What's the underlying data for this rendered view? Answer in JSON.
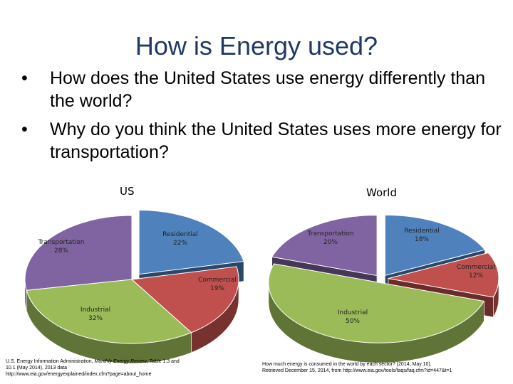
{
  "slide": {
    "title": "How is Energy used?",
    "bullets": [
      "How does the United States use energy differently than the world?",
      "Why do you think the United States uses more energy for transportation?"
    ],
    "bullet_glyph": "•"
  },
  "chart_data": [
    {
      "type": "pie",
      "title": "US",
      "categories": [
        "Residential",
        "Commercial",
        "Industrial",
        "Transportation"
      ],
      "values": [
        22,
        19,
        32,
        28
      ],
      "labels": [
        "22%",
        "19%",
        "32%",
        "28%"
      ],
      "colors": [
        "#4f81bd",
        "#c0504d",
        "#9bbb59",
        "#8064a2"
      ],
      "exploded": [
        "Residential"
      ]
    },
    {
      "type": "pie",
      "title": "World",
      "categories": [
        "Residential",
        "Commercial",
        "Industrial",
        "Transportation"
      ],
      "values": [
        18,
        12,
        50,
        20
      ],
      "labels": [
        "18%",
        "12%",
        "50%",
        "20%"
      ],
      "colors": [
        "#4f81bd",
        "#c0504d",
        "#9bbb59",
        "#8064a2"
      ],
      "exploded": [
        "Residential",
        "Commercial",
        "Industrial",
        "Transportation"
      ]
    }
  ],
  "sources": {
    "us_line1_pre": "U.S. Energy Information Administration, ",
    "us_line1_ital": "Monthly Energy Review",
    "us_line1_post": ", Table 1.3 and",
    "us_line2": "10.1 (May 2014), 2013 data",
    "us_line3": "http://www.eia.gov/energyexplained/index.cfm?page=about_home",
    "world_line1": "How much energy is consumed in the world by each sector? (2014, May 10).",
    "world_line2": "Retrieved December 15, 2014, from http://www.eia.gov/tools/faqs/faq.cfm?id=447&t=1"
  }
}
